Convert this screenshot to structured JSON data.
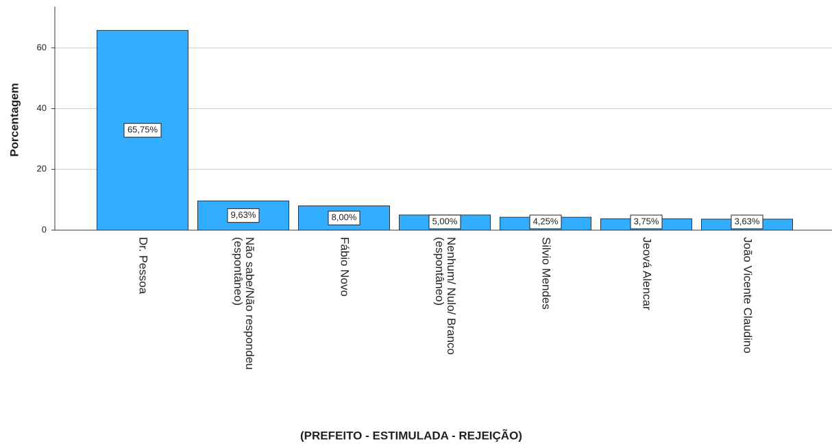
{
  "chart_data": {
    "type": "bar",
    "categories": [
      [
        "Dr. Pessoa"
      ],
      [
        "Não sabe/Não respondeu",
        "(espontâneo)"
      ],
      [
        "Fábio Novo"
      ],
      [
        "Nenhum/ Nulo/ Branco",
        "(espontâneo)"
      ],
      [
        "Silvio Mendes"
      ],
      [
        "Jeová Alencar"
      ],
      [
        "João Vicente Claudino"
      ]
    ],
    "values": [
      65.75,
      9.63,
      8.0,
      5.0,
      4.25,
      3.75,
      3.63
    ],
    "value_labels": [
      "65,75%",
      "9,63%",
      "8,00%",
      "5,00%",
      "4,25%",
      "3,75%",
      "3,63%"
    ],
    "color": "#33adff",
    "x_label": "(PREFEITO - ESTIMULADA - REJEIÇÃO)",
    "y_label": "Porcentagem",
    "ylim": [
      0,
      73.5
    ],
    "yticks": [
      0,
      20,
      40,
      60
    ],
    "grid": true
  }
}
